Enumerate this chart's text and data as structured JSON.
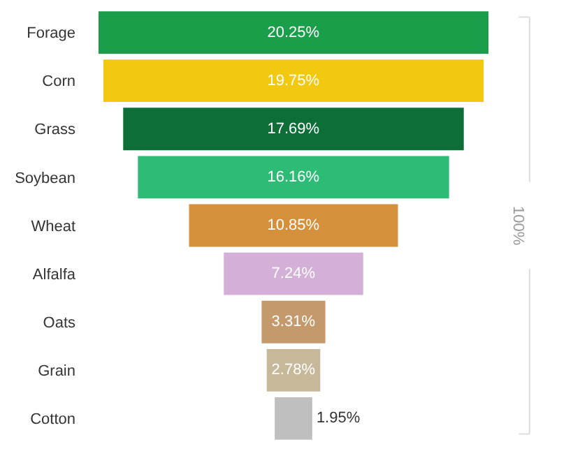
{
  "chart_data": {
    "type": "other",
    "categories": [
      "Forage",
      "Corn",
      "Grass",
      "Soybean",
      "Wheat",
      "Alfalfa",
      "Oats",
      "Grain",
      "Cotton"
    ],
    "values": [
      20.25,
      19.75,
      17.69,
      16.16,
      10.85,
      7.24,
      3.31,
      2.78,
      1.95
    ],
    "value_labels": [
      "20.25%",
      "19.75%",
      "17.69%",
      "16.16%",
      "10.85%",
      "7.24%",
      "3.31%",
      "2.78%",
      "1.95%"
    ],
    "colors": [
      "#1a9e4a",
      "#f2c811",
      "#0d6e37",
      "#2dbb76",
      "#d4903a",
      "#d4b0d8",
      "#c49a6c",
      "#c8b89a",
      "#bfbfbf"
    ],
    "annotations": [
      "100%"
    ]
  }
}
